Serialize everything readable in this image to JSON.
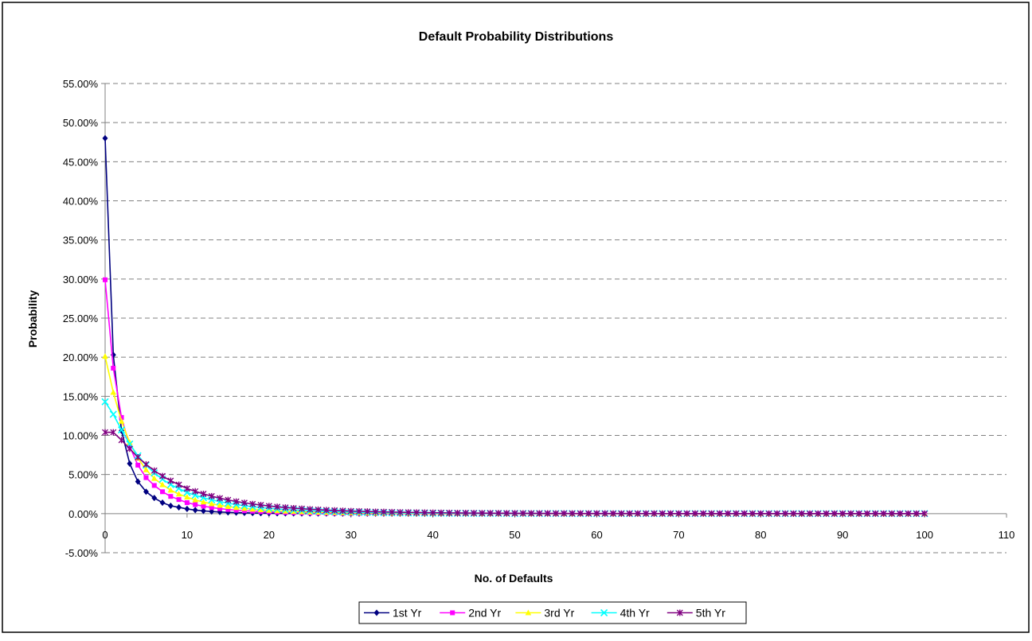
{
  "chart_data": {
    "type": "line",
    "title": "Default Probability Distributions",
    "xlabel": "No. of Defaults",
    "ylabel": "Probability",
    "xlim": [
      0,
      110
    ],
    "ylim": [
      -0.05,
      0.55
    ],
    "x_ticks": [
      0,
      10,
      20,
      30,
      40,
      50,
      60,
      70,
      80,
      90,
      100,
      110
    ],
    "x_tick_labels": [
      "0",
      "10",
      "20",
      "30",
      "40",
      "50",
      "60",
      "70",
      "80",
      "90",
      "100",
      "110"
    ],
    "y_ticks": [
      -0.05,
      0,
      0.05,
      0.1,
      0.15,
      0.2,
      0.25,
      0.3,
      0.35,
      0.4,
      0.45,
      0.5,
      0.55
    ],
    "y_tick_labels": [
      "-5.00%",
      "0.00%",
      "5.00%",
      "10.00%",
      "15.00%",
      "20.00%",
      "25.00%",
      "30.00%",
      "35.00%",
      "40.00%",
      "45.00%",
      "50.00%",
      "55.00%"
    ],
    "grid": "horizontal dashed",
    "legend_position": "bottom",
    "x": [
      0,
      1,
      2,
      3,
      4,
      5,
      6,
      7,
      8,
      9,
      10,
      11,
      12,
      13,
      14,
      15,
      16,
      17,
      18,
      19,
      20,
      21,
      22,
      23,
      24,
      25,
      26,
      27,
      28,
      29,
      30,
      31,
      32,
      33,
      34,
      35,
      36,
      37,
      38,
      39,
      40,
      41,
      42,
      43,
      44,
      45,
      46,
      47,
      48,
      49,
      50,
      51,
      52,
      53,
      54,
      55,
      56,
      57,
      58,
      59,
      60,
      61,
      62,
      63,
      64,
      65,
      66,
      67,
      68,
      69,
      70,
      71,
      72,
      73,
      74,
      75,
      76,
      77,
      78,
      79,
      80,
      81,
      82,
      83,
      84,
      85,
      86,
      87,
      88,
      89,
      90,
      91,
      92,
      93,
      94,
      95,
      96,
      97,
      98,
      99,
      100
    ],
    "series": [
      {
        "name": "1st Yr",
        "color": "#000080",
        "marker": "diamond",
        "values": [
          0.48,
          0.203,
          0.106,
          0.064,
          0.041,
          0.028,
          0.02,
          0.014,
          0.01,
          0.008,
          0.006,
          0.0045,
          0.0035,
          0.0027,
          0.0021,
          0.0016,
          0.0013,
          0.001,
          0.0008,
          0.0006,
          0.0005,
          0.0004,
          0.0003,
          0.00025,
          0.0002,
          0.00015,
          0.00012,
          0.0001,
          8e-05,
          6e-05,
          5e-05,
          4e-05,
          3e-05,
          2e-05,
          2e-05,
          1e-05,
          1e-05,
          1e-05,
          1e-05,
          0,
          0,
          0,
          0,
          0,
          0,
          0,
          0,
          0,
          0,
          0,
          0,
          0,
          0,
          0,
          0,
          0,
          0,
          0,
          0,
          0,
          0,
          0,
          0,
          0,
          0,
          0,
          0,
          0,
          0,
          0,
          0,
          0,
          0,
          0,
          0,
          0,
          0,
          0,
          0,
          0,
          0,
          0,
          0,
          0,
          0,
          0,
          0,
          0,
          0,
          0,
          0,
          0,
          0,
          0,
          0,
          0,
          0,
          0,
          0,
          0,
          0
        ]
      },
      {
        "name": "2nd Yr",
        "color": "#FF00FF",
        "marker": "square",
        "values": [
          0.299,
          0.186,
          0.123,
          0.086,
          0.062,
          0.046,
          0.036,
          0.028,
          0.022,
          0.018,
          0.014,
          0.0115,
          0.0095,
          0.0078,
          0.0064,
          0.0053,
          0.0044,
          0.0037,
          0.0031,
          0.0026,
          0.0022,
          0.0018,
          0.0015,
          0.0013,
          0.0011,
          0.0009,
          0.00078,
          0.00066,
          0.00056,
          0.00047,
          0.0004,
          0.00034,
          0.00029,
          0.00025,
          0.00021,
          0.00018,
          0.00015,
          0.00013,
          0.00011,
          9e-05,
          8e-05,
          7e-05,
          6e-05,
          5e-05,
          4e-05,
          3e-05,
          3e-05,
          2e-05,
          2e-05,
          2e-05,
          1e-05,
          1e-05,
          1e-05,
          1e-05,
          0,
          0,
          0,
          0,
          0,
          0,
          0,
          0,
          0,
          0,
          0,
          0,
          0,
          0,
          0,
          0,
          0,
          0,
          0,
          0,
          0,
          0,
          0,
          0,
          0,
          0,
          0,
          0,
          0,
          0,
          0,
          0,
          0,
          0,
          0,
          0,
          0,
          0,
          0,
          0,
          0,
          0,
          0,
          0,
          0,
          0,
          0
        ]
      },
      {
        "name": "3rd Yr",
        "color": "#FFFF00",
        "marker": "triangle",
        "values": [
          0.201,
          0.155,
          0.118,
          0.091,
          0.071,
          0.056,
          0.045,
          0.037,
          0.03,
          0.025,
          0.021,
          0.0175,
          0.0148,
          0.0125,
          0.0106,
          0.009,
          0.0077,
          0.0066,
          0.0057,
          0.0049,
          0.0042,
          0.0036,
          0.0031,
          0.0027,
          0.0023,
          0.002,
          0.0017,
          0.0015,
          0.0013,
          0.0011,
          0.00097,
          0.00084,
          0.00073,
          0.00063,
          0.00055,
          0.00048,
          0.00041,
          0.00036,
          0.00031,
          0.00027,
          0.00023,
          0.0002,
          0.00017,
          0.00015,
          0.00013,
          0.00011,
          0.0001,
          8e-05,
          7e-05,
          6e-05,
          5e-05,
          5e-05,
          4e-05,
          3e-05,
          3e-05,
          3e-05,
          2e-05,
          2e-05,
          2e-05,
          1e-05,
          1e-05,
          1e-05,
          1e-05,
          1e-05,
          0,
          0,
          0,
          0,
          0,
          0,
          0,
          0,
          0,
          0,
          0,
          0,
          0,
          0,
          0,
          0,
          0,
          0,
          0,
          0,
          0,
          0,
          0,
          0,
          0,
          0,
          0,
          0,
          0,
          0,
          0,
          0,
          0,
          0,
          0,
          0,
          0
        ]
      },
      {
        "name": "4th Yr",
        "color": "#00FFFF",
        "marker": "x",
        "values": [
          0.143,
          0.127,
          0.107,
          0.089,
          0.074,
          0.062,
          0.052,
          0.044,
          0.037,
          0.032,
          0.027,
          0.0235,
          0.0203,
          0.0176,
          0.0153,
          0.0133,
          0.0116,
          0.0101,
          0.0089,
          0.0078,
          0.0068,
          0.006,
          0.0053,
          0.0047,
          0.0041,
          0.0036,
          0.0032,
          0.0028,
          0.0025,
          0.0022,
          0.002,
          0.0017,
          0.0015,
          0.0014,
          0.0012,
          0.0011,
          0.00095,
          0.00084,
          0.00075,
          0.00066,
          0.00059,
          0.00052,
          0.00046,
          0.00041,
          0.00036,
          0.00032,
          0.00029,
          0.00025,
          0.00022,
          0.0002,
          0.00018,
          0.00016,
          0.00014,
          0.00012,
          0.00011,
          0.0001,
          9e-05,
          8e-05,
          7e-05,
          6e-05,
          5e-05,
          5e-05,
          4e-05,
          4e-05,
          3e-05,
          3e-05,
          3e-05,
          2e-05,
          2e-05,
          2e-05,
          2e-05,
          1e-05,
          1e-05,
          1e-05,
          1e-05,
          1e-05,
          1e-05,
          1e-05,
          0,
          0,
          0,
          0,
          0,
          0,
          0,
          0,
          0,
          0,
          0,
          0,
          0,
          0,
          0,
          0,
          0,
          0,
          0,
          0,
          0,
          0,
          0
        ]
      },
      {
        "name": "5th Yr",
        "color": "#800080",
        "marker": "asterisk",
        "values": [
          0.104,
          0.104,
          0.094,
          0.083,
          0.072,
          0.063,
          0.055,
          0.048,
          0.042,
          0.037,
          0.032,
          0.0285,
          0.0252,
          0.0223,
          0.0197,
          0.0175,
          0.0155,
          0.0138,
          0.0123,
          0.011,
          0.0098,
          0.0087,
          0.0078,
          0.007,
          0.0063,
          0.0056,
          0.0051,
          0.0045,
          0.0041,
          0.0037,
          0.0033,
          0.003,
          0.0027,
          0.0024,
          0.0022,
          0.002,
          0.0018,
          0.0016,
          0.0015,
          0.0013,
          0.0012,
          0.0011,
          0.00097,
          0.00088,
          0.0008,
          0.00072,
          0.00065,
          0.00059,
          0.00054,
          0.00049,
          0.00044,
          0.0004,
          0.00036,
          0.00033,
          0.0003,
          0.00027,
          0.00024,
          0.00022,
          0.0002,
          0.00018,
          0.00016,
          0.00015,
          0.00013,
          0.00012,
          0.00011,
          0.0001,
          9e-05,
          8e-05,
          7e-05,
          7e-05,
          6e-05,
          5e-05,
          5e-05,
          4e-05,
          4e-05,
          4e-05,
          3e-05,
          3e-05,
          3e-05,
          2e-05,
          2e-05,
          2e-05,
          2e-05,
          2e-05,
          1e-05,
          1e-05,
          1e-05,
          1e-05,
          1e-05,
          1e-05,
          1e-05,
          1e-05,
          1e-05,
          0,
          0,
          0,
          0,
          0,
          0,
          0,
          0
        ]
      }
    ]
  }
}
